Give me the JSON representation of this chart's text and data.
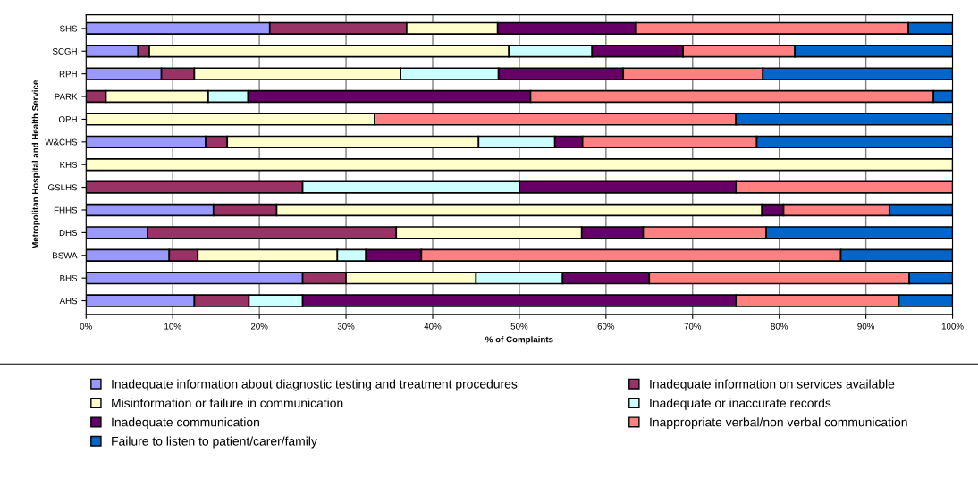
{
  "chart_data": {
    "type": "bar",
    "orientation": "horizontal",
    "stacked": true,
    "xlabel": "% of Complaints",
    "ylabel": "Metropolitan Hospital and Health Service",
    "categories": [
      "SHS",
      "SCGH",
      "RPH",
      "PARK",
      "OPH",
      "W&CHS",
      "KHS",
      "GSLHS",
      "FHHS",
      "DHS",
      "BSWA",
      "BHS",
      "AHS"
    ],
    "series": [
      {
        "name": "Inadequate information about diagnostic testing and treatment procedures",
        "color": "#9999ff",
        "values": [
          21.2,
          6.0,
          8.7,
          0,
          0,
          13.8,
          0,
          0,
          14.7,
          7.1,
          9.6,
          25,
          12.5
        ]
      },
      {
        "name": "Inadequate information on services available",
        "color": "#993366",
        "values": [
          15.8,
          1.3,
          3.8,
          2.3,
          0,
          2.5,
          0,
          25,
          7.3,
          28.7,
          3.3,
          5,
          6.3
        ]
      },
      {
        "name": "Misinformation or failure in communication",
        "color": "#ffffcc",
        "values": [
          10.5,
          41.5,
          23.8,
          11.8,
          33.3,
          29.0,
          100,
          0,
          56.0,
          21.4,
          16.1,
          15,
          0
        ]
      },
      {
        "name": "Inadequate or inaccurate records",
        "color": "#ccffff",
        "values": [
          0,
          9.6,
          11.3,
          4.6,
          0,
          8.8,
          0,
          25,
          0,
          0,
          3.3,
          10,
          6.2
        ]
      },
      {
        "name": "Inadequate communication",
        "color": "#660066",
        "values": [
          15.9,
          10.5,
          14.4,
          32.6,
          0,
          3.2,
          0,
          25,
          2.5,
          7.1,
          6.4,
          10,
          50
        ]
      },
      {
        "name": "Inappropriate verbal/non verbal communication",
        "color": "#ff8080",
        "values": [
          31.5,
          12.9,
          16.1,
          46.5,
          41.7,
          20.1,
          0,
          25,
          12.2,
          14.2,
          48.4,
          30,
          18.8
        ]
      },
      {
        "name": "Failure to listen to patient/carer/family",
        "color": "#0066cc",
        "values": [
          5.1,
          18.2,
          21.9,
          2.2,
          25,
          22.6,
          0,
          0,
          7.3,
          21.5,
          12.9,
          5,
          6.2
        ]
      }
    ],
    "xlim": [
      0,
      100
    ],
    "xticks": [
      {
        "value": 0,
        "label": "0%"
      },
      {
        "value": 10,
        "label": "10%"
      },
      {
        "value": 20,
        "label": "20%"
      },
      {
        "value": 30,
        "label": "30%"
      },
      {
        "value": 40,
        "label": "40%"
      },
      {
        "value": 50,
        "label": "50%"
      },
      {
        "value": 60,
        "label": "60%"
      },
      {
        "value": 70,
        "label": "70%"
      },
      {
        "value": 80,
        "label": "80%"
      },
      {
        "value": 90,
        "label": "90%"
      },
      {
        "value": 100,
        "label": "100%"
      }
    ],
    "grid": "x",
    "legend": "bottom"
  }
}
